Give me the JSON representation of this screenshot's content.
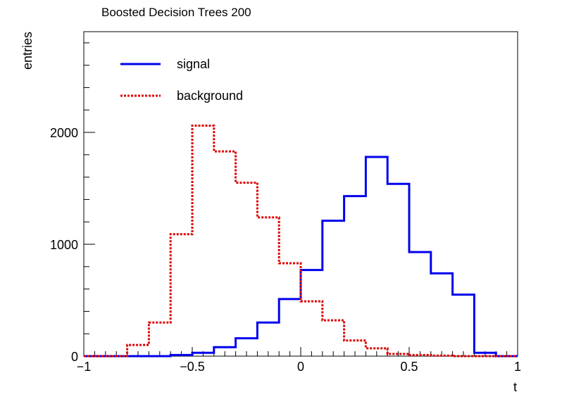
{
  "chart_data": {
    "type": "histogram",
    "title": "Boosted Decision Trees 200",
    "xlabel": "t",
    "ylabel": "entries",
    "xlim": [
      -1,
      1
    ],
    "ylim": [
      0,
      2900
    ],
    "x_ticks": [
      -1,
      -0.5,
      0,
      0.5,
      1
    ],
    "x_tick_labels": [
      "−1",
      "−0.5",
      "0",
      "0.5",
      "1"
    ],
    "y_ticks": [
      0,
      1000,
      2000
    ],
    "y_tick_labels": [
      "0",
      "1000",
      "2000"
    ],
    "grid": false,
    "legend_position": "top-left",
    "bin_edges": [
      -1,
      -0.9,
      -0.8,
      -0.7,
      -0.6,
      -0.5,
      -0.4,
      -0.3,
      -0.2,
      -0.1,
      0,
      0.1,
      0.2,
      0.3,
      0.4,
      0.5,
      0.6,
      0.7,
      0.8,
      0.9,
      1
    ],
    "series": [
      {
        "name": "signal",
        "color": "#0000ee",
        "line_style": "solid",
        "values": [
          0,
          0,
          0,
          0,
          10,
          30,
          80,
          160,
          300,
          510,
          770,
          1210,
          1430,
          1780,
          1540,
          930,
          740,
          550,
          30,
          0
        ]
      },
      {
        "name": "background",
        "color": "#dd0000",
        "line_style": "dotted",
        "values": [
          0,
          0,
          100,
          300,
          1090,
          2060,
          1830,
          1550,
          1240,
          830,
          490,
          320,
          140,
          70,
          20,
          10,
          5,
          0,
          0,
          0
        ]
      }
    ]
  }
}
